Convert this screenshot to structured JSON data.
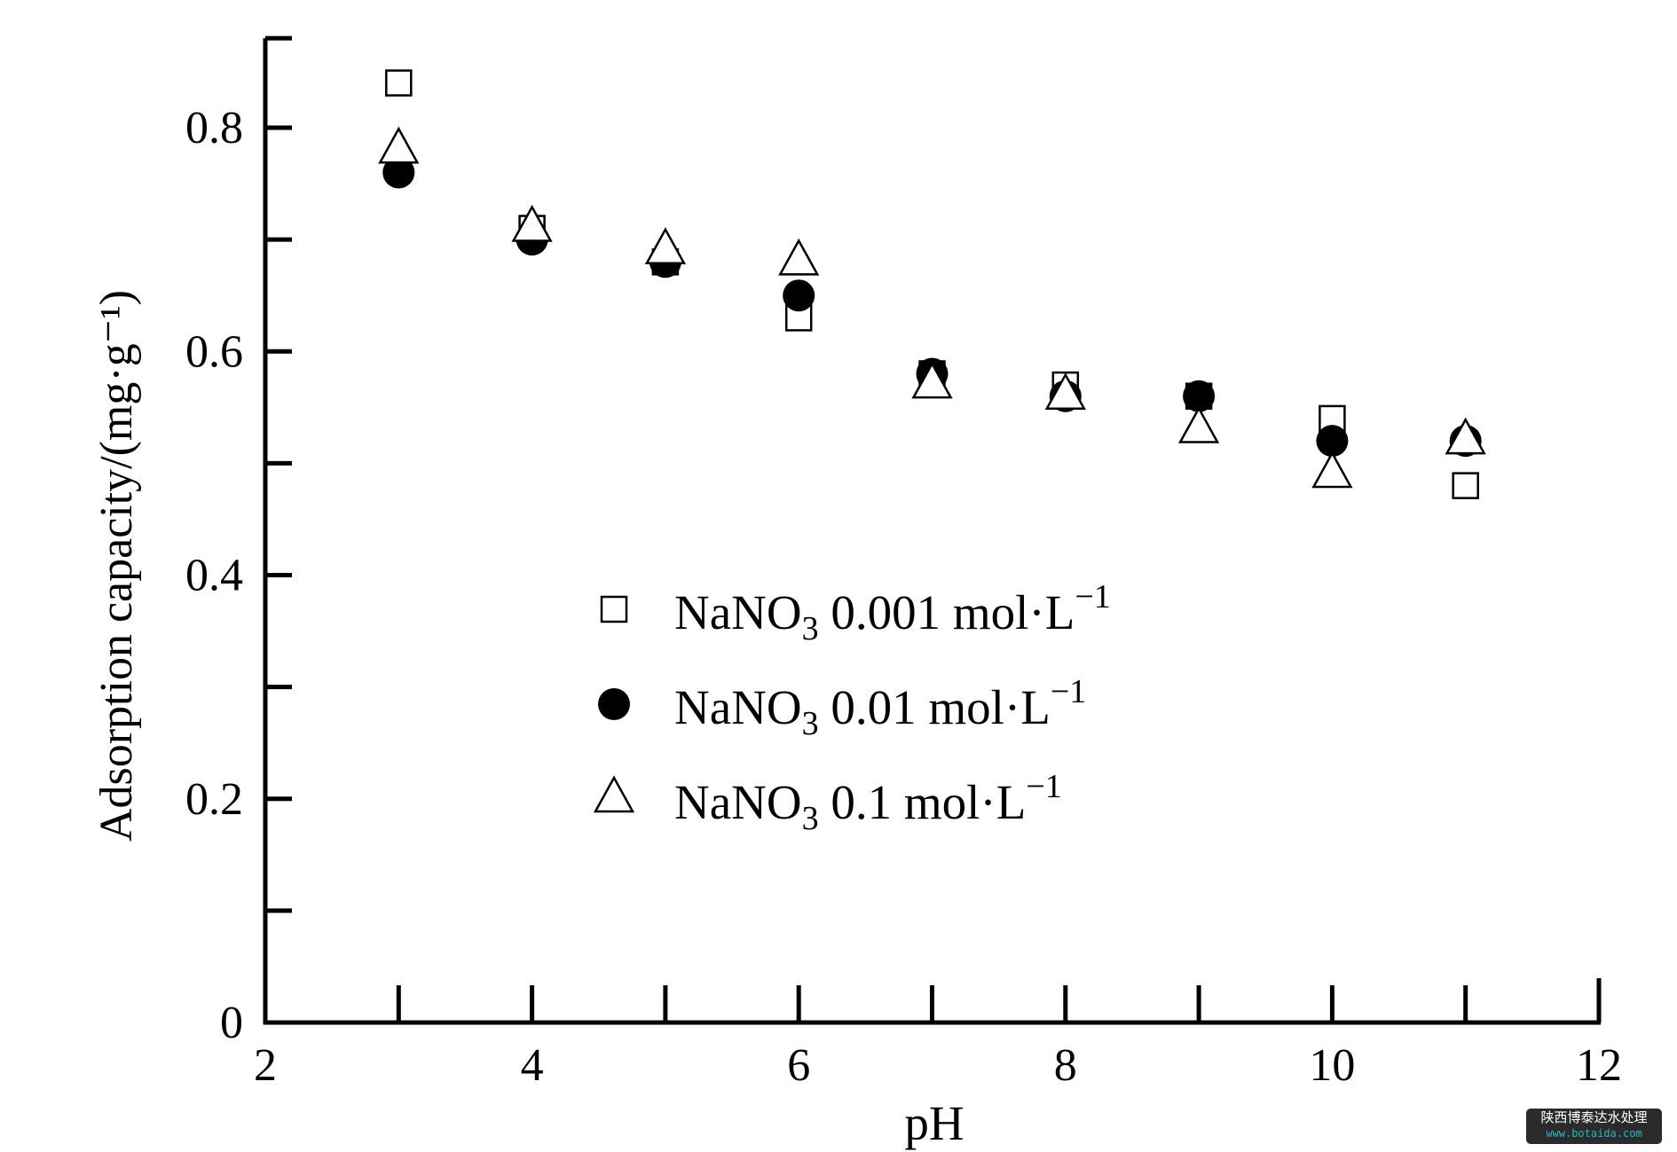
{
  "chart_data": {
    "type": "scatter",
    "xlabel": "pH",
    "ylabel": "Adsorption capacity/(mg·g⁻¹)",
    "xlim": [
      2,
      12
    ],
    "ylim": [
      0,
      0.88
    ],
    "xticks": [
      2,
      4,
      6,
      8,
      10,
      12
    ],
    "xtick_labels": [
      "2",
      "4",
      "6",
      "8",
      "10",
      "12"
    ],
    "xminor": [
      3,
      5,
      7,
      9,
      11
    ],
    "yticks": [
      0,
      0.2,
      0.4,
      0.6,
      0.8
    ],
    "ytick_labels": [
      "0",
      "0.2",
      "0.4",
      "0.6",
      "0.8"
    ],
    "yminor": [
      0.1,
      0.3,
      0.5,
      0.7
    ],
    "grid": false,
    "legend_position": "center",
    "x": [
      3,
      4,
      5,
      6,
      7,
      8,
      9,
      10,
      11
    ],
    "series": [
      {
        "name": "NaNO3 0.001 mol·L−1",
        "label_main": "NaNO",
        "label_sub": "3",
        "label_rest": " 0.001 mol·L",
        "label_sup": "−1",
        "marker": "open-square",
        "color": "#000000",
        "values": [
          0.84,
          0.71,
          0.68,
          0.63,
          0.58,
          0.57,
          0.56,
          0.54,
          0.48
        ]
      },
      {
        "name": "NaNO3 0.01 mol·L−1",
        "label_main": "NaNO",
        "label_sub": "3",
        "label_rest": " 0.01 mol·L",
        "label_sup": "−1",
        "marker": "filled-circle",
        "color": "#000000",
        "values": [
          0.76,
          0.7,
          0.68,
          0.65,
          0.58,
          0.56,
          0.56,
          0.52,
          0.52
        ]
      },
      {
        "name": "NaNO3 0.1 mol·L−1",
        "label_main": "NaNO",
        "label_sub": "3",
        "label_rest": " 0.1 mol·L",
        "label_sup": "−1",
        "marker": "open-triangle",
        "color": "#000000",
        "values": [
          0.78,
          0.71,
          0.69,
          0.68,
          0.57,
          0.56,
          0.53,
          0.49,
          0.52
        ]
      }
    ]
  },
  "watermark": {
    "line1": "陕西博泰达水处理",
    "line2": "www.botaida.com"
  }
}
